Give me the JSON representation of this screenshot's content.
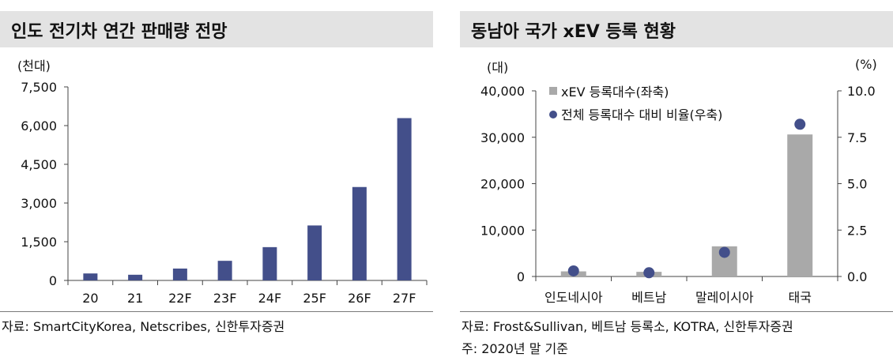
{
  "left": {
    "title": "인도 전기차 연간 판매량 전망",
    "unit": "(천대)",
    "source": "자료: SmartCityKorea, Netscribes, 신한투자증권",
    "colors": {
      "bar": "#434f8a",
      "title_bg": "#e3e3e3"
    }
  },
  "right": {
    "title": "동남아 국가 xEV 등록 현황",
    "unit_left": "(대)",
    "unit_right": "(%)",
    "source": "자료: Frost&Sullivan, 베트남 등록소, KOTRA, 신한투자증권",
    "note": "주: 2020년 말 기준",
    "colors": {
      "bar": "#a9a9a9",
      "dot": "#434f8a",
      "title_bg": "#e3e3e3"
    }
  },
  "chart_data": [
    {
      "type": "bar",
      "categories": [
        "20",
        "21",
        "22F",
        "23F",
        "24F",
        "25F",
        "26F",
        "27F"
      ],
      "values": [
        270,
        220,
        460,
        760,
        1290,
        2130,
        3620,
        6290
      ],
      "ylim": [
        0,
        7500
      ],
      "yticks": [
        0,
        1500,
        3000,
        4500,
        6000,
        7500
      ],
      "ytick_labels": [
        "0",
        "1,500",
        "3,000",
        "4,500",
        "6,000",
        "7,500"
      ],
      "grid": false
    },
    {
      "type": "bar",
      "categories": [
        "인도네시아",
        "베트남",
        "말레이시아",
        "태국"
      ],
      "series": [
        {
          "name": "xEV 등록대수(좌축)",
          "type": "bar",
          "axis": "left",
          "values": [
            1100,
            1000,
            6500,
            30600
          ]
        },
        {
          "name": "전체 등록대수 대비 비율(우축)",
          "type": "scatter",
          "axis": "right",
          "values": [
            0.3,
            0.2,
            1.3,
            8.2
          ]
        }
      ],
      "ylim_left": [
        0,
        40000
      ],
      "yticks_left": [
        0,
        10000,
        20000,
        30000,
        40000
      ],
      "ytick_labels_left": [
        "0",
        "10,000",
        "20,000",
        "30,000",
        "40,000"
      ],
      "ylim_right": [
        0,
        10
      ],
      "yticks_right": [
        0,
        2.5,
        5,
        7.5,
        10
      ],
      "ytick_labels_right": [
        "0.0",
        "2.5",
        "5.0",
        "7.5",
        "10.0"
      ],
      "legend_position": "top-left",
      "grid": false
    }
  ]
}
